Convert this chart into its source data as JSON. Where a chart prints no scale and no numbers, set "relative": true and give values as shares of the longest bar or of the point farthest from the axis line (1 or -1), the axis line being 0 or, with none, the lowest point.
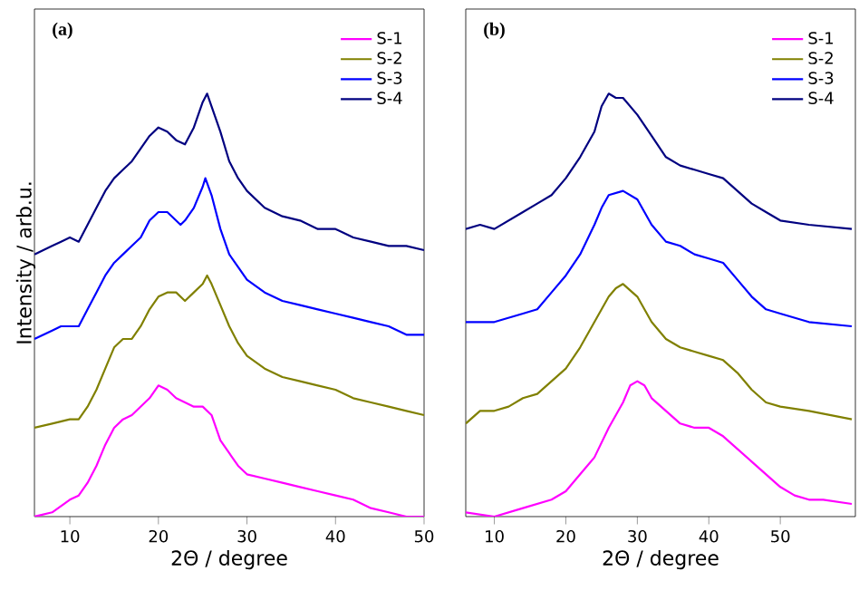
{
  "chart_data": [
    {
      "type": "line",
      "relative": true,
      "xlabel": "2Θ / degree",
      "ylabel": "Intensity / arb.u.",
      "annotations": [
        "(a)"
      ],
      "xlim": [
        6,
        50
      ],
      "xticks": [
        10,
        20,
        30,
        40,
        50
      ],
      "tick_labels": "x",
      "legend": "top right",
      "series": [
        {
          "name": "S-1",
          "color": "#ff00ff",
          "x": [
            6,
            8,
            10,
            11,
            12,
            13,
            14,
            15,
            16,
            17,
            18,
            19,
            20,
            21,
            22,
            23,
            24,
            25,
            26,
            27,
            28,
            29,
            30,
            32,
            34,
            36,
            38,
            40,
            42,
            44,
            46,
            48,
            50
          ],
          "values": [
            0.0,
            0.01,
            0.04,
            0.05,
            0.08,
            0.12,
            0.17,
            0.21,
            0.23,
            0.24,
            0.26,
            0.28,
            0.31,
            0.3,
            0.28,
            0.27,
            0.26,
            0.26,
            0.24,
            0.18,
            0.15,
            0.12,
            0.1,
            0.09,
            0.08,
            0.07,
            0.06,
            0.05,
            0.04,
            0.02,
            0.01,
            0.0,
            0.0
          ]
        },
        {
          "name": "S-2",
          "color": "#808000",
          "x": [
            6,
            8,
            10,
            11,
            12,
            13,
            14,
            15,
            16,
            17,
            18,
            19,
            20,
            21,
            22,
            23,
            24,
            25,
            25.5,
            26,
            27,
            28,
            29,
            30,
            32,
            34,
            36,
            38,
            40,
            42,
            44,
            46,
            48,
            50
          ],
          "values": [
            0.21,
            0.22,
            0.23,
            0.23,
            0.26,
            0.3,
            0.35,
            0.4,
            0.42,
            0.42,
            0.45,
            0.49,
            0.52,
            0.53,
            0.53,
            0.51,
            0.53,
            0.55,
            0.57,
            0.55,
            0.5,
            0.45,
            0.41,
            0.38,
            0.35,
            0.33,
            0.32,
            0.31,
            0.3,
            0.28,
            0.27,
            0.26,
            0.25,
            0.24
          ]
        },
        {
          "name": "S-3",
          "color": "#0000ff",
          "x": [
            6,
            8,
            9,
            10,
            11,
            12,
            13,
            14,
            15,
            16,
            17,
            18,
            19,
            20,
            21,
            22,
            22.5,
            23,
            24,
            25,
            25.3,
            26,
            27,
            28,
            29,
            30,
            32,
            34,
            36,
            38,
            40,
            42,
            44,
            46,
            48,
            50
          ],
          "values": [
            0.42,
            0.44,
            0.45,
            0.45,
            0.45,
            0.49,
            0.53,
            0.57,
            0.6,
            0.62,
            0.64,
            0.66,
            0.7,
            0.72,
            0.72,
            0.7,
            0.69,
            0.7,
            0.73,
            0.78,
            0.8,
            0.76,
            0.68,
            0.62,
            0.59,
            0.56,
            0.53,
            0.51,
            0.5,
            0.49,
            0.48,
            0.47,
            0.46,
            0.45,
            0.43,
            0.43
          ]
        },
        {
          "name": "S-4",
          "color": "#000080",
          "x": [
            6,
            8,
            9,
            10,
            11,
            12,
            13,
            14,
            15,
            16,
            17,
            18,
            19,
            20,
            21,
            22,
            23,
            24,
            25,
            25.5,
            26,
            27,
            28,
            29,
            30,
            32,
            34,
            36,
            38,
            40,
            42,
            44,
            46,
            48,
            50
          ],
          "values": [
            0.62,
            0.64,
            0.65,
            0.66,
            0.65,
            0.69,
            0.73,
            0.77,
            0.8,
            0.82,
            0.84,
            0.87,
            0.9,
            0.92,
            0.91,
            0.89,
            0.88,
            0.92,
            0.98,
            1.0,
            0.97,
            0.91,
            0.84,
            0.8,
            0.77,
            0.73,
            0.71,
            0.7,
            0.68,
            0.68,
            0.66,
            0.65,
            0.64,
            0.64,
            0.63
          ]
        }
      ]
    },
    {
      "type": "line",
      "relative": true,
      "xlabel": "2Θ / degree",
      "annotations": [
        "(b)"
      ],
      "xlim": [
        6,
        60.5
      ],
      "xticks": [
        10,
        20,
        30,
        40,
        50
      ],
      "tick_labels": "x",
      "legend": "top right",
      "series": [
        {
          "name": "S-1",
          "color": "#ff00ff",
          "x": [
            6,
            10,
            14,
            18,
            20,
            22,
            24,
            26,
            28,
            29,
            30,
            31,
            32,
            34,
            36,
            38,
            40,
            42,
            44,
            46,
            48,
            50,
            52,
            54,
            56,
            60
          ],
          "values": [
            0.01,
            0.0,
            0.02,
            0.04,
            0.06,
            0.1,
            0.14,
            0.21,
            0.27,
            0.31,
            0.32,
            0.31,
            0.28,
            0.25,
            0.22,
            0.21,
            0.21,
            0.19,
            0.16,
            0.13,
            0.1,
            0.07,
            0.05,
            0.04,
            0.04,
            0.03
          ]
        },
        {
          "name": "S-2",
          "color": "#808000",
          "x": [
            6,
            8,
            10,
            12,
            14,
            16,
            18,
            20,
            22,
            24,
            26,
            27,
            28,
            30,
            32,
            34,
            36,
            38,
            40,
            42,
            44,
            46,
            48,
            50,
            54,
            60
          ],
          "values": [
            0.22,
            0.25,
            0.25,
            0.26,
            0.28,
            0.29,
            0.32,
            0.35,
            0.4,
            0.46,
            0.52,
            0.54,
            0.55,
            0.52,
            0.46,
            0.42,
            0.4,
            0.39,
            0.38,
            0.37,
            0.34,
            0.3,
            0.27,
            0.26,
            0.25,
            0.23
          ]
        },
        {
          "name": "S-3",
          "color": "#0000ff",
          "x": [
            6,
            8,
            10,
            14,
            16,
            18,
            20,
            22,
            24,
            25,
            26,
            28,
            30,
            32,
            34,
            36,
            38,
            40,
            42,
            44,
            46,
            48,
            50,
            54,
            60
          ],
          "values": [
            0.46,
            0.46,
            0.46,
            0.48,
            0.49,
            0.53,
            0.57,
            0.62,
            0.69,
            0.73,
            0.76,
            0.77,
            0.75,
            0.69,
            0.65,
            0.64,
            0.62,
            0.61,
            0.6,
            0.56,
            0.52,
            0.49,
            0.48,
            0.46,
            0.45
          ]
        },
        {
          "name": "S-4",
          "color": "#000080",
          "x": [
            6,
            8,
            10,
            12,
            14,
            16,
            18,
            20,
            22,
            24,
            25,
            26,
            27,
            28,
            30,
            32,
            34,
            36,
            38,
            40,
            42,
            44,
            46,
            48,
            50,
            54,
            60
          ],
          "values": [
            0.68,
            0.69,
            0.68,
            0.7,
            0.72,
            0.74,
            0.76,
            0.8,
            0.85,
            0.91,
            0.97,
            1.0,
            0.99,
            0.99,
            0.95,
            0.9,
            0.85,
            0.83,
            0.82,
            0.81,
            0.8,
            0.77,
            0.74,
            0.72,
            0.7,
            0.69,
            0.68
          ]
        }
      ]
    }
  ]
}
